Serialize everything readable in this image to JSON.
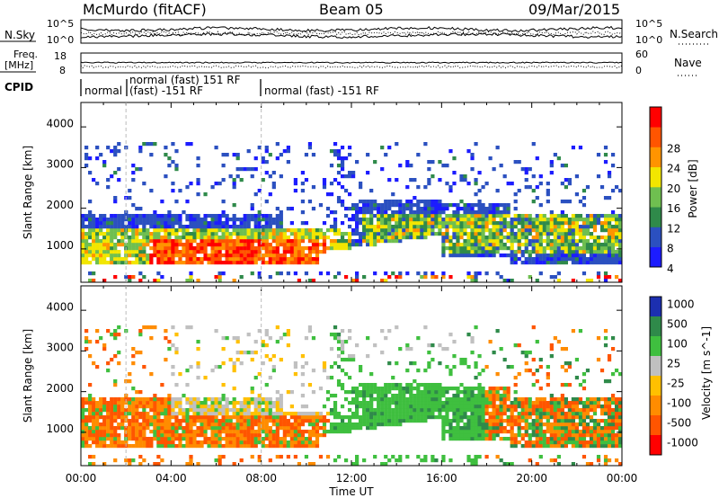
{
  "header": {
    "station": "McMurdo (fitACF)",
    "beam": "Beam 05",
    "date": "09/Mar/2015"
  },
  "panels": {
    "noise": {
      "left_label": "N.Sky",
      "right_label": "N.Search",
      "left_ticks": [
        "10^5",
        "10^0"
      ],
      "right_ticks": [
        "10^5",
        "10^0"
      ]
    },
    "freq": {
      "left_label_1": "Freq.",
      "left_label_2": "[MHz]",
      "right_label": "Nave",
      "left_ticks": [
        "18",
        "8"
      ],
      "right_ticks": [
        "60",
        "0"
      ]
    },
    "cpid": {
      "label": "CPID",
      "segments": [
        {
          "text": "normal"
        },
        {
          "text": "normal (fast) 151 RF"
        },
        {
          "text": "(fast) -151 RF"
        },
        {
          "text": "normal (fast) -151 RF"
        }
      ]
    }
  },
  "time_axis": {
    "label": "Time UT",
    "ticks": [
      "00:00",
      "04:00",
      "08:00",
      "12:00",
      "16:00",
      "20:00",
      "00:00"
    ]
  },
  "range_axis": {
    "label": "Slant Range [km]",
    "ticks": [
      "1000",
      "2000",
      "3000",
      "4000"
    ]
  },
  "power_scale": {
    "label": "Power [dB]",
    "ticks": [
      "4",
      "8",
      "12",
      "16",
      "20",
      "24",
      "28"
    ],
    "colors": [
      "#1c1cff",
      "#2b50c0",
      "#2f8a4a",
      "#6fbf50",
      "#f2e600",
      "#ff9400",
      "#ff5500",
      "#ff0000"
    ]
  },
  "velocity_scale": {
    "label": "Velocity [m s^-1]",
    "ticks": [
      "1000",
      "500",
      "100",
      "25",
      "-25",
      "-100",
      "-500",
      "-1000"
    ],
    "colors": [
      "#1c2fb0",
      "#2f8a4a",
      "#3fbf3f",
      "#c0c0c0",
      "#ffc000",
      "#ff8c00",
      "#ff5500",
      "#ff0000"
    ]
  },
  "chart_data": [
    {
      "type": "heatmap",
      "title": "Power",
      "xlabel": "Time UT",
      "ylabel": "Slant Range [km]",
      "x_range": [
        "00:00",
        "24:00"
      ],
      "ylim": [
        180,
        4600
      ],
      "colorbar_label": "Power [dB]",
      "colorbar_range": [
        0,
        30
      ]
    },
    {
      "type": "heatmap",
      "title": "Velocity",
      "xlabel": "Time UT",
      "ylabel": "Slant Range [km]",
      "x_range": [
        "00:00",
        "24:00"
      ],
      "ylim": [
        180,
        4600
      ],
      "colorbar_label": "Velocity [m s^-1]",
      "colorbar_range": [
        -1000,
        1000
      ]
    }
  ]
}
